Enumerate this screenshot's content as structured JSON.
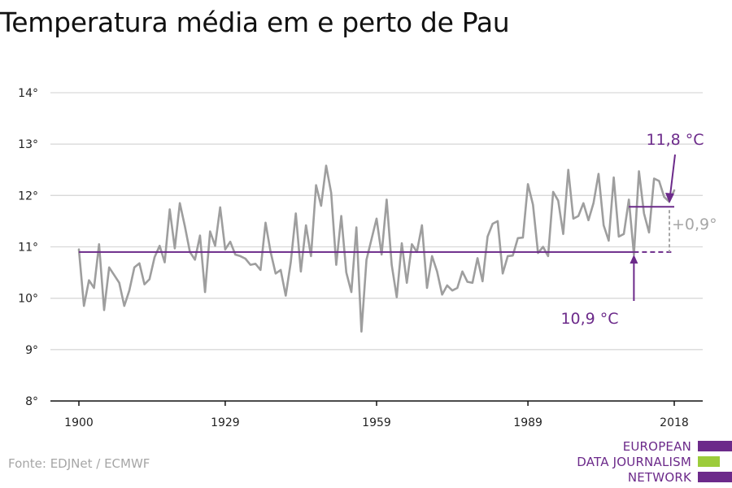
{
  "title": "Temperatura média em e perto de Pau",
  "source": "Fonte: EDJNet / ECMWF",
  "logo": {
    "line1": "EUROPEAN",
    "line2": "DATA JOURNALISM",
    "line3": "NETWORK",
    "colors": {
      "purple": "#6c2a8a",
      "green": "#9ccc3b"
    }
  },
  "colors": {
    "series": "#9e9e9e",
    "average": "#6c2a8a",
    "grid": "#d9d9d9",
    "axis": "#111111",
    "diff": "#a6a6a6"
  },
  "chart_data": {
    "type": "line",
    "title": "Temperatura média em e perto de Pau",
    "ylim": [
      8,
      14
    ],
    "xlim": [
      1900,
      2018
    ],
    "y_ticks": [
      "8°",
      "9°",
      "10°",
      "11°",
      "12°",
      "13°",
      "14°"
    ],
    "x_ticks": [
      "1900",
      "1929",
      "1959",
      "1989",
      "2018"
    ],
    "grid": "horizontal",
    "x": [
      1900,
      1901,
      1902,
      1903,
      1904,
      1905,
      1906,
      1907,
      1908,
      1909,
      1910,
      1911,
      1912,
      1913,
      1914,
      1915,
      1916,
      1917,
      1918,
      1919,
      1920,
      1921,
      1922,
      1923,
      1924,
      1925,
      1926,
      1927,
      1928,
      1929,
      1930,
      1931,
      1932,
      1933,
      1934,
      1935,
      1936,
      1937,
      1938,
      1939,
      1940,
      1941,
      1942,
      1943,
      1944,
      1945,
      1946,
      1947,
      1948,
      1949,
      1950,
      1951,
      1952,
      1953,
      1954,
      1955,
      1956,
      1957,
      1958,
      1959,
      1960,
      1961,
      1962,
      1963,
      1964,
      1965,
      1966,
      1967,
      1968,
      1969,
      1970,
      1971,
      1972,
      1973,
      1974,
      1975,
      1976,
      1977,
      1978,
      1979,
      1980,
      1981,
      1982,
      1983,
      1984,
      1985,
      1986,
      1987,
      1988,
      1989,
      1990,
      1991,
      1992,
      1993,
      1994,
      1995,
      1996,
      1997,
      1998,
      1999,
      2000,
      2001,
      2002,
      2003,
      2004,
      2005,
      2006,
      2007,
      2008,
      2009,
      2010,
      2011,
      2012,
      2013,
      2014,
      2015,
      2016,
      2017,
      2018
    ],
    "series": [
      {
        "values": [
          10.95,
          9.85,
          10.35,
          10.2,
          11.05,
          9.77,
          10.6,
          10.45,
          10.3,
          9.85,
          10.15,
          10.6,
          10.68,
          10.27,
          10.37,
          10.8,
          11.02,
          10.7,
          11.73,
          10.97,
          11.85,
          11.4,
          10.9,
          10.75,
          11.22,
          10.12,
          11.3,
          11.02,
          11.77,
          10.95,
          11.1,
          10.85,
          10.82,
          10.77,
          10.65,
          10.67,
          10.55,
          11.47,
          10.9,
          10.48,
          10.55,
          10.05,
          10.7,
          11.65,
          10.52,
          11.42,
          10.82,
          12.2,
          11.8,
          12.58,
          12.05,
          10.65,
          11.6,
          10.5,
          10.12,
          11.38,
          9.35,
          10.75,
          11.15,
          11.55,
          10.85,
          11.92,
          10.65,
          10.02,
          11.07,
          10.3,
          11.05,
          10.9,
          11.42,
          10.2,
          10.82,
          10.52,
          10.07,
          10.25,
          10.15,
          10.2,
          10.52,
          10.32,
          10.3,
          10.78,
          10.33,
          11.2,
          11.45,
          11.5,
          10.48,
          10.82,
          10.83,
          11.17,
          11.18,
          12.22,
          11.82,
          10.88,
          11.0,
          10.82,
          12.07,
          11.9,
          11.25,
          12.5,
          11.55,
          11.6,
          11.85,
          11.52,
          11.85,
          12.42,
          11.42,
          11.12,
          12.35,
          11.2,
          11.25,
          11.92,
          10.85,
          12.47,
          11.65,
          11.28,
          12.33,
          12.28,
          11.97,
          11.88,
          12.1
        ]
      }
    ],
    "reference_lines": [
      {
        "label": "10,9 °C",
        "value": 10.9,
        "from": 1900,
        "to": 2010,
        "dashed_to": 2018
      },
      {
        "label": "11,8 °C",
        "value": 11.78,
        "from": 2009,
        "to": 2018
      }
    ],
    "difference_label": "+0,9°"
  }
}
